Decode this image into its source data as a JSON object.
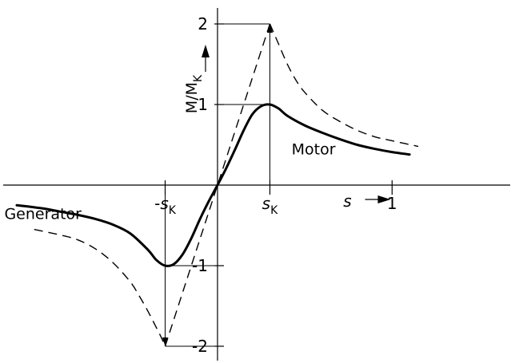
{
  "chart_data": {
    "type": "line",
    "title": "",
    "xlabel": "s",
    "ylabel": "M/M_K",
    "ylabel_main": "M/M",
    "ylabel_sub": "K",
    "xlim": [
      -1.2,
      1.3
    ],
    "ylim": [
      -2.2,
      2.2
    ],
    "grid": false,
    "s_k": 0.3,
    "x_ticks": [
      {
        "value": -0.3,
        "main": "s",
        "sub": "K",
        "prefix": "-"
      },
      {
        "value": 0.3,
        "main": "s",
        "sub": "K",
        "prefix": ""
      },
      {
        "value": 1,
        "main": "1",
        "sub": "",
        "prefix": ""
      }
    ],
    "y_ticks": [
      {
        "value": 2,
        "label": "2"
      },
      {
        "value": 1,
        "label": "1"
      },
      {
        "value": -1,
        "label": "-1"
      },
      {
        "value": -2,
        "label": "-2"
      }
    ],
    "annotations": [
      {
        "text": "Motor",
        "x": 0.55,
        "y": 0.45
      },
      {
        "text": "Generator",
        "x": -1.0,
        "y": -0.35
      }
    ],
    "series": [
      {
        "style": "solid",
        "x": [
          -1.15,
          -1.0,
          -0.9,
          -0.8,
          -0.7,
          -0.6,
          -0.5,
          -0.4,
          -0.35,
          -0.3,
          -0.25,
          -0.2,
          -0.15,
          -0.1,
          -0.05,
          0,
          0.05,
          0.1,
          0.15,
          0.2,
          0.25,
          0.3,
          0.35,
          0.4,
          0.5,
          0.6,
          0.7,
          0.8,
          0.9,
          1.0,
          1.1
        ],
        "y": [
          -0.25,
          -0.29,
          -0.33,
          -0.37,
          -0.42,
          -0.49,
          -0.6,
          -0.8,
          -0.93,
          -1.0,
          -0.98,
          -0.86,
          -0.66,
          -0.42,
          -0.2,
          0,
          0.21,
          0.44,
          0.68,
          0.88,
          0.98,
          1.0,
          0.95,
          0.86,
          0.74,
          0.65,
          0.57,
          0.5,
          0.45,
          0.41,
          0.38
        ]
      },
      {
        "style": "dashed",
        "x": [
          -1.05,
          -0.9,
          -0.8,
          -0.7,
          -0.6,
          -0.5,
          -0.45,
          -0.4,
          -0.35,
          -0.32,
          -0.3
        ],
        "y": [
          -0.55,
          -0.62,
          -0.68,
          -0.79,
          -0.96,
          -1.2,
          -1.37,
          -1.56,
          -1.77,
          -1.9,
          -2.0
        ]
      },
      {
        "style": "dashed",
        "x": [
          0.3,
          0.32,
          0.35,
          0.4,
          0.45,
          0.5,
          0.6,
          0.7,
          0.8,
          0.9,
          1.0,
          1.15
        ],
        "y": [
          2.0,
          1.9,
          1.75,
          1.5,
          1.3,
          1.15,
          0.93,
          0.79,
          0.68,
          0.6,
          0.55,
          0.48
        ]
      },
      {
        "style": "dashed",
        "x": [
          -0.3,
          0.3
        ],
        "y": [
          -2.0,
          2.0
        ]
      }
    ]
  }
}
